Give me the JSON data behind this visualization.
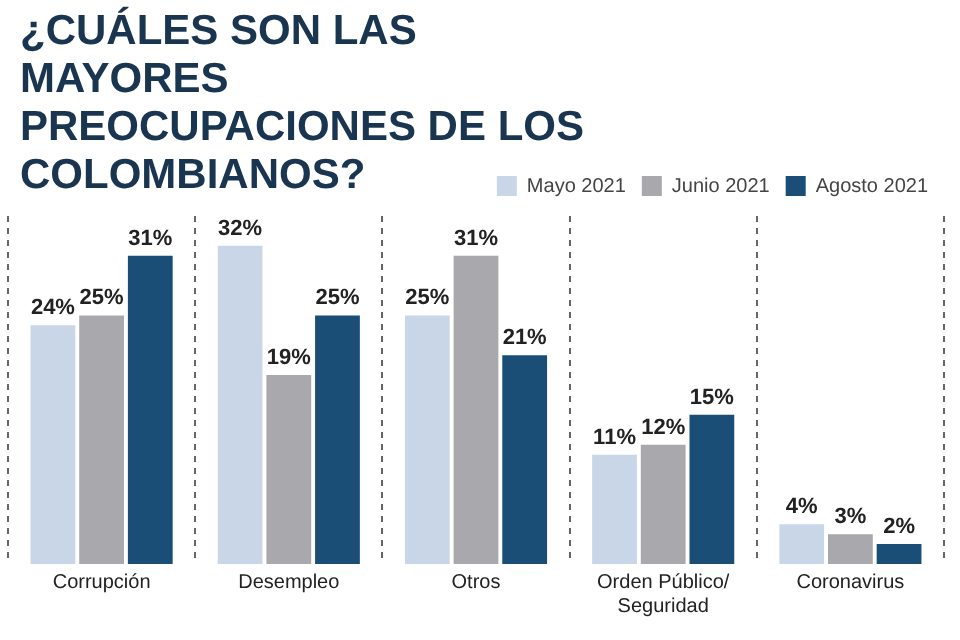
{
  "chart_data": {
    "type": "bar",
    "title": "¿CUÁLES SON LAS MAYORES PREOCUPACIONES DE LOS COLOMBIANOS?",
    "categories": [
      "Corrupción",
      "Desempleo",
      "Otros",
      "Orden Público/ Seguridad",
      "Coronavirus"
    ],
    "series": [
      {
        "name": "Mayo 2021",
        "color": "#c9d6e8",
        "values": [
          24,
          32,
          25,
          11,
          4
        ],
        "value_labels": [
          "24%",
          "32%",
          "25%",
          "11%",
          "4%"
        ]
      },
      {
        "name": "Junio 2021",
        "color": "#a9a9ad",
        "values": [
          25,
          19,
          31,
          12,
          3
        ],
        "value_labels": [
          "25%",
          "19%",
          "31%",
          "12%",
          "3%"
        ]
      },
      {
        "name": "Agosto 2021",
        "color": "#1b4e77",
        "values": [
          31,
          25,
          21,
          15,
          2
        ],
        "value_labels": [
          "31%",
          "25%",
          "21%",
          "15%",
          "2%"
        ]
      }
    ],
    "legend": "top right",
    "grid": "x",
    "tick_labels": "x"
  }
}
